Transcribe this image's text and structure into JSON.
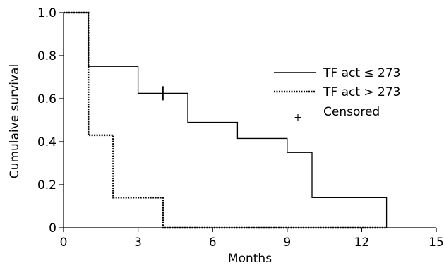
{
  "chart_data": {
    "type": "line",
    "title": "",
    "xlabel": "Months",
    "ylabel": "Cumulaive survival",
    "xlim": [
      0,
      15
    ],
    "ylim": [
      0,
      1.0
    ],
    "x_ticks": [
      0,
      3,
      6,
      9,
      12,
      15
    ],
    "x_tick_labels": [
      "0",
      "3",
      "6",
      "9",
      "12",
      "15"
    ],
    "y_ticks": [
      0,
      0.2,
      0.4,
      0.6,
      0.8,
      1.0
    ],
    "y_tick_labels": [
      "0",
      "0.2",
      "0.4",
      "0.6",
      "0.8",
      "1.0"
    ],
    "grid": false,
    "legend_position": "top-right",
    "series": [
      {
        "name": "TF act ≤ 273",
        "line_style": "solid",
        "step_x": [
          0,
          1,
          3,
          5,
          7,
          9,
          10,
          13
        ],
        "step_y": [
          1.0,
          0.75,
          0.625,
          0.49,
          0.415,
          0.35,
          0.14,
          0.0
        ],
        "censored_x": [
          4
        ],
        "censored_y": [
          0.625
        ]
      },
      {
        "name": "TF act > 273",
        "line_style": "dotted",
        "step_x": [
          0,
          1,
          2,
          4,
          13
        ],
        "step_y": [
          1.0,
          0.43,
          0.14,
          0.0,
          0.0
        ],
        "censored_x": [],
        "censored_y": []
      }
    ],
    "legend": {
      "entries": [
        {
          "label": "TF act ≤ 273",
          "style": "solid"
        },
        {
          "label": "TF act > 273",
          "style": "dotted"
        },
        {
          "label": "Censored",
          "style": "plus"
        }
      ],
      "plus_symbol": "+"
    }
  }
}
